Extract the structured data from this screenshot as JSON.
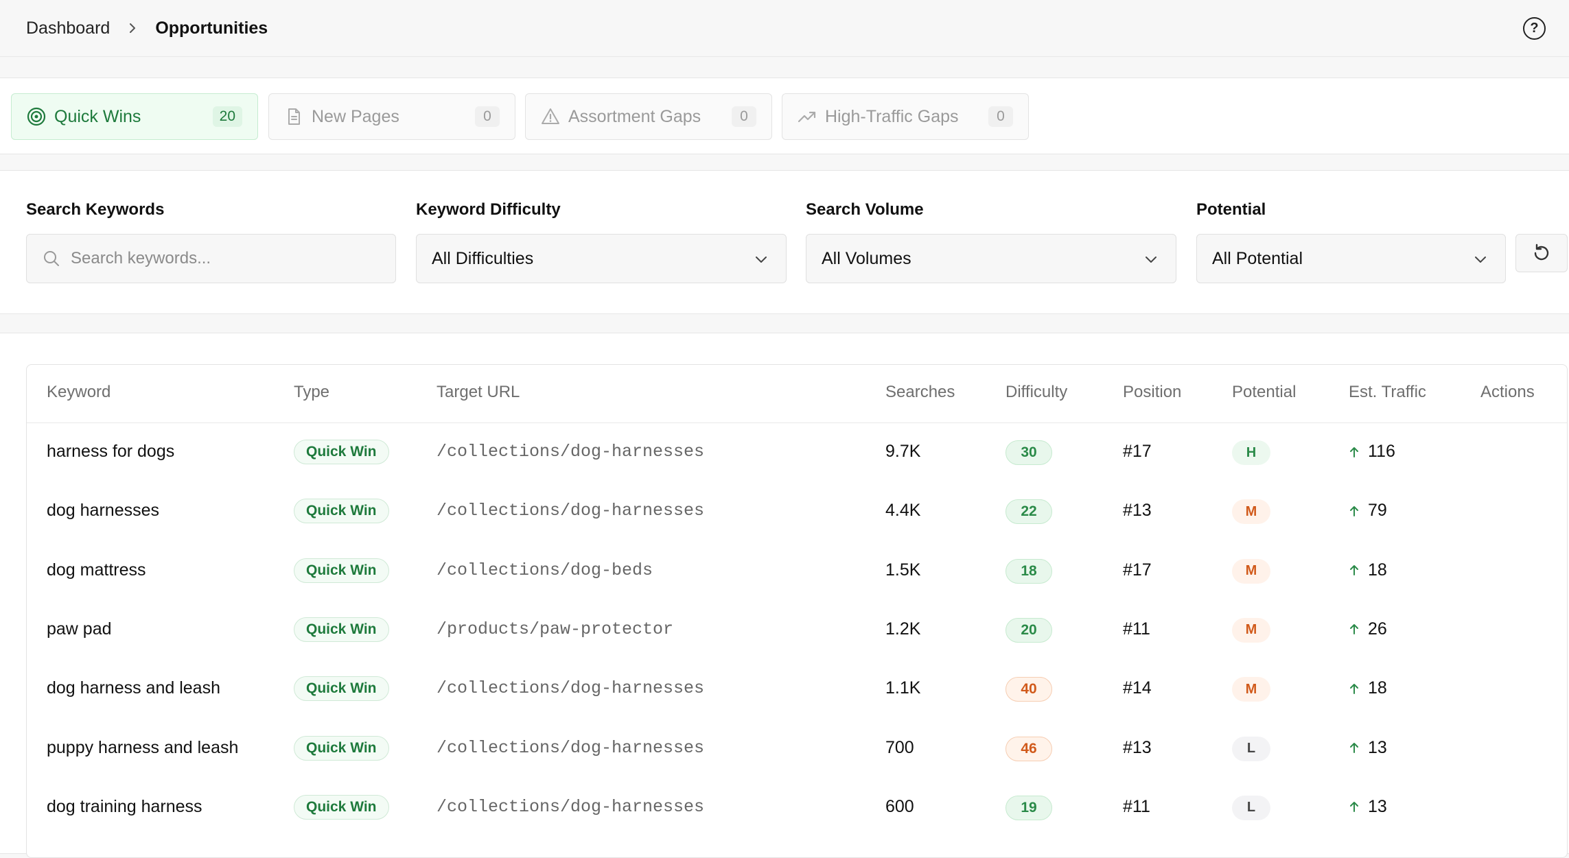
{
  "breadcrumb": {
    "parent": "Dashboard",
    "current": "Opportunities"
  },
  "help": {
    "glyph": "?"
  },
  "tabs": [
    {
      "label": "Quick Wins",
      "count": "20",
      "icon": "target-icon",
      "active": true
    },
    {
      "label": "New Pages",
      "count": "0",
      "icon": "file-icon",
      "active": false
    },
    {
      "label": "Assortment Gaps",
      "count": "0",
      "icon": "warning-icon",
      "active": false
    },
    {
      "label": "High-Traffic Gaps",
      "count": "0",
      "icon": "trending-up-icon",
      "active": false
    }
  ],
  "filters": {
    "search": {
      "label": "Search Keywords",
      "placeholder": "Search keywords...",
      "value": ""
    },
    "difficulty": {
      "label": "Keyword Difficulty",
      "value": "All Difficulties"
    },
    "volume": {
      "label": "Search Volume",
      "value": "All Volumes"
    },
    "potential": {
      "label": "Potential",
      "value": "All Potential"
    }
  },
  "table": {
    "columns": [
      "Keyword",
      "Type",
      "Target URL",
      "Searches",
      "Difficulty",
      "Position",
      "Potential",
      "Est. Traffic",
      "Actions"
    ],
    "rows": [
      {
        "keyword": "harness for dogs",
        "type": "Quick Win",
        "url": "/collections/dog-harnesses",
        "searches": "9.7K",
        "difficulty": "30",
        "difficulty_level": "green",
        "position": "#17",
        "potential": "H",
        "traffic": "116"
      },
      {
        "keyword": "dog harnesses",
        "type": "Quick Win",
        "url": "/collections/dog-harnesses",
        "searches": "4.4K",
        "difficulty": "22",
        "difficulty_level": "green",
        "position": "#13",
        "potential": "M",
        "traffic": "79"
      },
      {
        "keyword": "dog mattress",
        "type": "Quick Win",
        "url": "/collections/dog-beds",
        "searches": "1.5K",
        "difficulty": "18",
        "difficulty_level": "green",
        "position": "#17",
        "potential": "M",
        "traffic": "18"
      },
      {
        "keyword": "paw pad",
        "type": "Quick Win",
        "url": "/products/paw-protector",
        "searches": "1.2K",
        "difficulty": "20",
        "difficulty_level": "green",
        "position": "#11",
        "potential": "M",
        "traffic": "26"
      },
      {
        "keyword": "dog harness and leash",
        "type": "Quick Win",
        "url": "/collections/dog-harnesses",
        "searches": "1.1K",
        "difficulty": "40",
        "difficulty_level": "orange",
        "position": "#14",
        "potential": "M",
        "traffic": "18"
      },
      {
        "keyword": "puppy harness and leash",
        "type": "Quick Win",
        "url": "/collections/dog-harnesses",
        "searches": "700",
        "difficulty": "46",
        "difficulty_level": "orange",
        "position": "#13",
        "potential": "L",
        "traffic": "13"
      },
      {
        "keyword": "dog training harness",
        "type": "Quick Win",
        "url": "/collections/dog-harnesses",
        "searches": "600",
        "difficulty": "19",
        "difficulty_level": "green",
        "position": "#11",
        "potential": "L",
        "traffic": "13"
      }
    ]
  },
  "colors": {
    "accent_green": "#1e7a3c",
    "orange": "#d15a1b"
  }
}
